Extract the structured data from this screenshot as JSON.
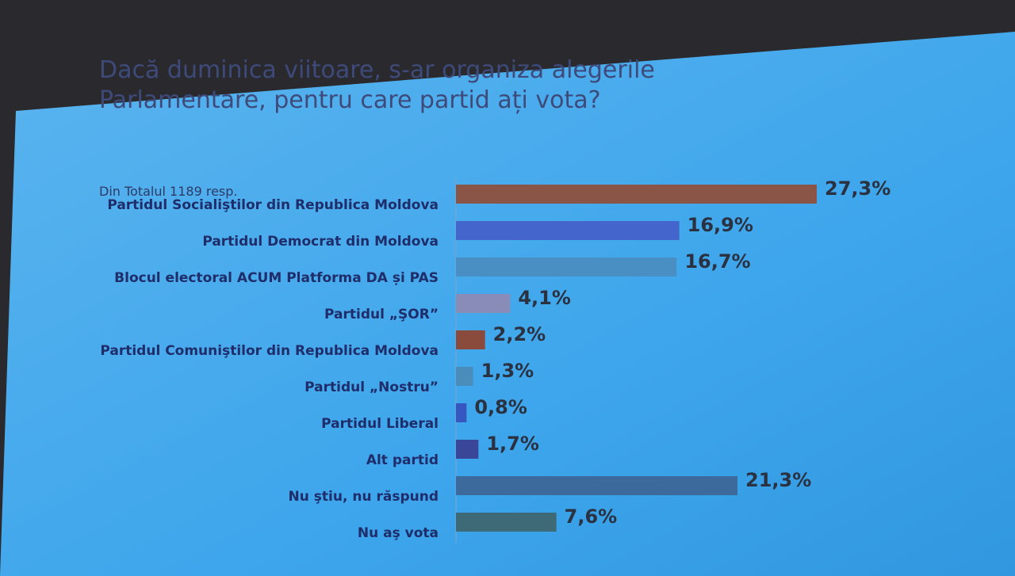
{
  "chart_data": {
    "type": "hbar",
    "title": "Dacă duminica viitoare, s-ar organiza alegerile Parlamentare, pentru care partid ați vota?",
    "subtitle": "Din Totalul 1189 resp.",
    "categories": [
      "Partidul Socialiştilor din Republica Moldova",
      "Partidul Democrat din Moldova",
      "Blocul electoral ACUM Platforma DA și PAS",
      "Partidul „ŞOR”",
      "Partidul Comuniştilor din Republica Moldova",
      "Partidul „Nostru”",
      "Partidul Liberal",
      "Alt partid",
      "Nu ştiu, nu răspund",
      "Nu aş vota"
    ],
    "values": [
      27.3,
      16.9,
      16.7,
      4.1,
      2.2,
      1.3,
      0.8,
      1.7,
      21.3,
      7.6
    ],
    "value_labels": [
      "27,3%",
      "16,9%",
      "16,7%",
      "4,1%",
      "2,2%",
      "1,3%",
      "0,8%",
      "1,7%",
      "21,3%",
      "7,6%"
    ],
    "colors": [
      "#8a5446",
      "#4466cc",
      "#4a8fc4",
      "#8a8cb8",
      "#8a4a3c",
      "#4a8cba",
      "#3656c0",
      "#3a4698",
      "#3c6a9c",
      "#3e6a78"
    ]
  }
}
